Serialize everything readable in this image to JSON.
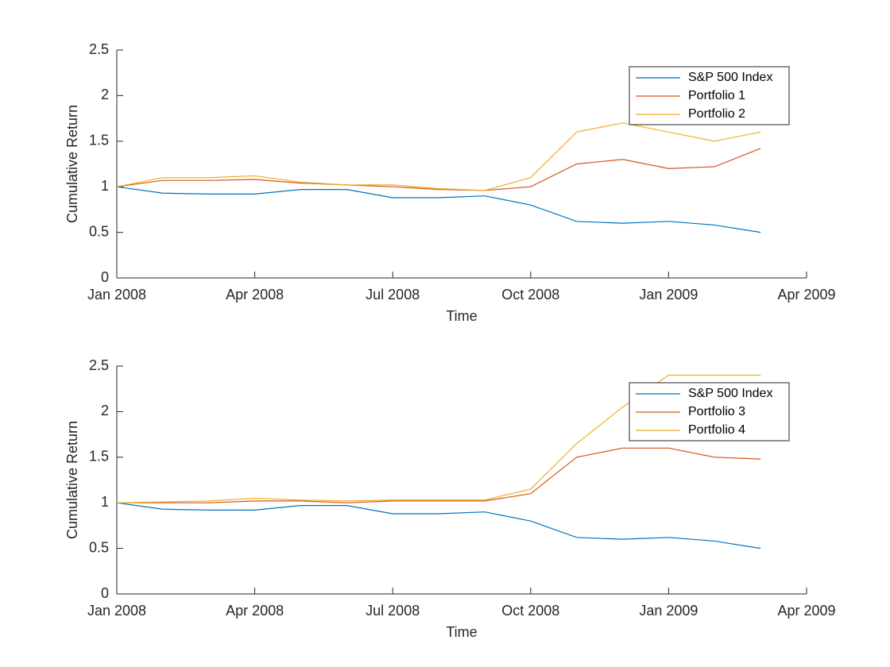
{
  "chart_data": [
    {
      "type": "line",
      "xlabel": "Time",
      "ylabel": "Cumulative Return",
      "x": [
        "2008-01",
        "2008-02",
        "2008-03",
        "2008-04",
        "2008-05",
        "2008-06",
        "2008-07",
        "2008-08",
        "2008-09",
        "2008-10",
        "2008-11",
        "2008-12",
        "2009-01",
        "2009-02",
        "2009-03"
      ],
      "series": [
        {
          "name": "S&P 500 Index",
          "color": "#0072bd",
          "values": [
            1.0,
            0.93,
            0.92,
            0.92,
            0.97,
            0.97,
            0.88,
            0.88,
            0.9,
            0.8,
            0.62,
            0.6,
            0.62,
            0.58,
            0.5
          ]
        },
        {
          "name": "Portfolio 1",
          "color": "#d95319",
          "values": [
            1.0,
            1.07,
            1.07,
            1.08,
            1.04,
            1.02,
            1.0,
            0.97,
            0.96,
            1.0,
            1.25,
            1.3,
            1.2,
            1.22,
            1.42
          ]
        },
        {
          "name": "Portfolio 2",
          "color": "#edb120",
          "values": [
            1.0,
            1.1,
            1.1,
            1.12,
            1.05,
            1.02,
            1.02,
            0.98,
            0.96,
            1.1,
            1.6,
            1.7,
            1.6,
            1.5,
            1.6
          ]
        }
      ],
      "xlim": [
        "2008-01",
        "2009-04"
      ],
      "xticks": [
        {
          "value": "2008-01",
          "label": "Jan 2008"
        },
        {
          "value": "2008-04",
          "label": "Apr 2008"
        },
        {
          "value": "2008-07",
          "label": "Jul 2008"
        },
        {
          "value": "2008-10",
          "label": "Oct 2008"
        },
        {
          "value": "2009-01",
          "label": "Jan 2009"
        },
        {
          "value": "2009-04",
          "label": "Apr 2009"
        }
      ],
      "ylim": [
        0,
        2.5
      ],
      "yticks": [
        0,
        0.5,
        1,
        1.5,
        2,
        2.5
      ],
      "legend": "northeast"
    },
    {
      "type": "line",
      "xlabel": "Time",
      "ylabel": "Cumulative Return",
      "x": [
        "2008-01",
        "2008-02",
        "2008-03",
        "2008-04",
        "2008-05",
        "2008-06",
        "2008-07",
        "2008-08",
        "2008-09",
        "2008-10",
        "2008-11",
        "2008-12",
        "2009-01",
        "2009-02",
        "2009-03"
      ],
      "series": [
        {
          "name": "S&P 500 Index",
          "color": "#0072bd",
          "values": [
            1.0,
            0.93,
            0.92,
            0.92,
            0.97,
            0.97,
            0.88,
            0.88,
            0.9,
            0.8,
            0.62,
            0.6,
            0.62,
            0.58,
            0.5
          ]
        },
        {
          "name": "Portfolio 3",
          "color": "#d95319",
          "values": [
            1.0,
            1.0,
            1.0,
            1.02,
            1.02,
            1.0,
            1.02,
            1.02,
            1.02,
            1.1,
            1.5,
            1.6,
            1.6,
            1.5,
            1.48
          ]
        },
        {
          "name": "Portfolio 4",
          "color": "#edb120",
          "values": [
            1.0,
            1.01,
            1.02,
            1.05,
            1.03,
            1.02,
            1.03,
            1.03,
            1.03,
            1.15,
            1.65,
            2.05,
            2.4,
            2.4,
            2.4
          ]
        }
      ],
      "xlim": [
        "2008-01",
        "2009-04"
      ],
      "xticks": [
        {
          "value": "2008-01",
          "label": "Jan 2008"
        },
        {
          "value": "2008-04",
          "label": "Apr 2008"
        },
        {
          "value": "2008-07",
          "label": "Jul 2008"
        },
        {
          "value": "2008-10",
          "label": "Oct 2008"
        },
        {
          "value": "2009-01",
          "label": "Jan 2009"
        },
        {
          "value": "2009-04",
          "label": "Apr 2009"
        }
      ],
      "ylim": [
        0,
        2.5
      ],
      "yticks": [
        0,
        0.5,
        1,
        1.5,
        2,
        2.5
      ],
      "legend": "northeast"
    }
  ]
}
